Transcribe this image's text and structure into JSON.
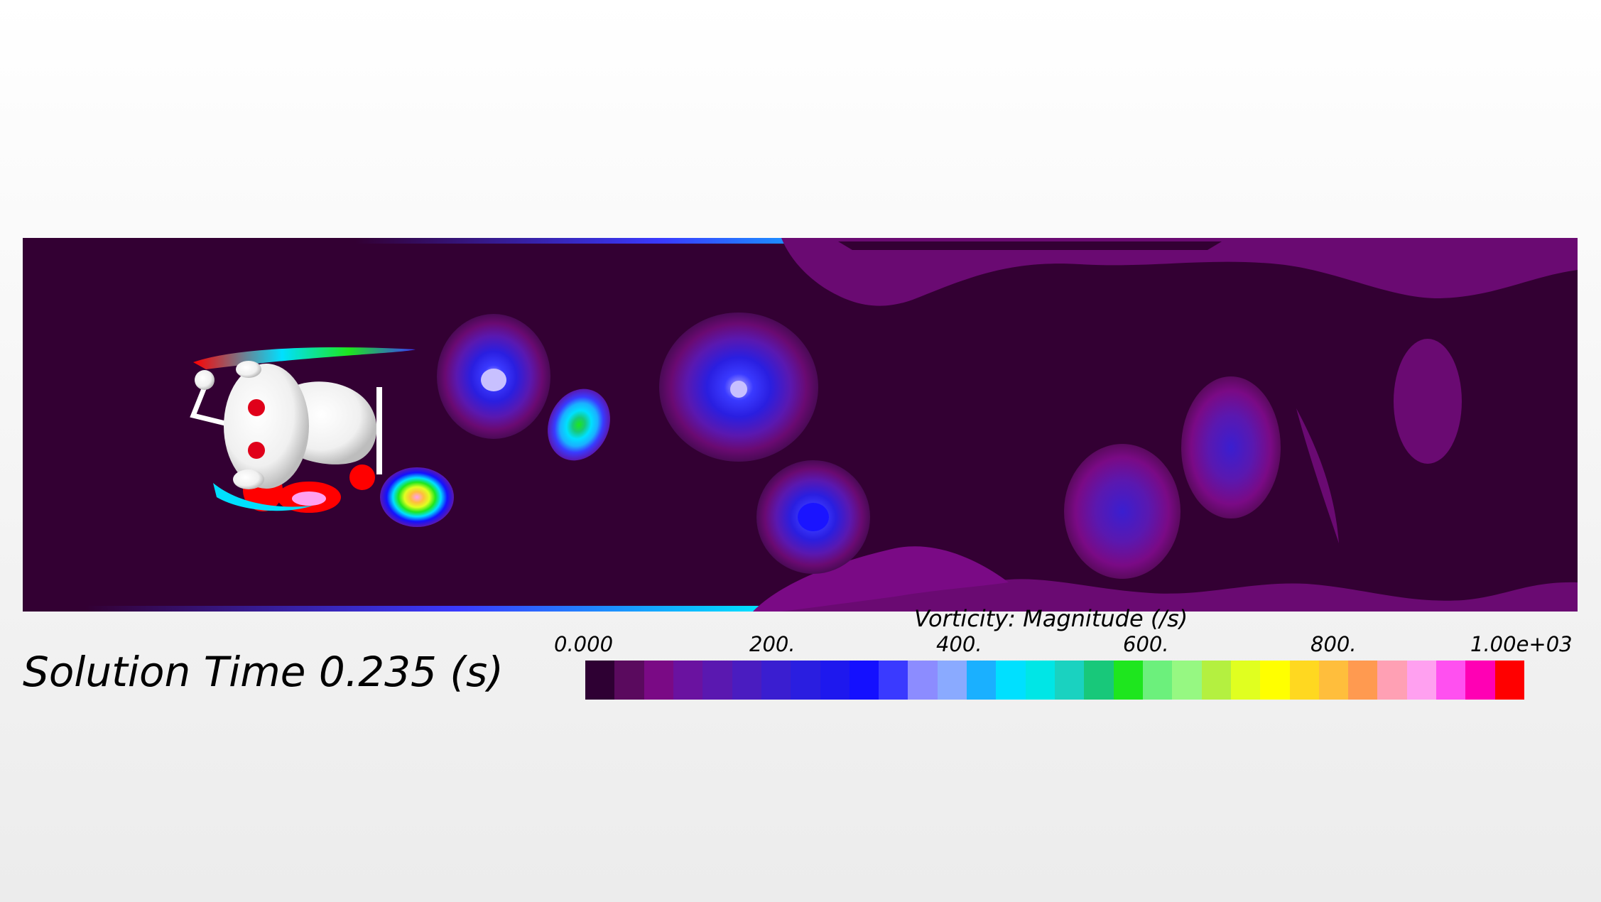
{
  "solution_time_label": "Solution Time 0.235 (s)",
  "legend": {
    "title": "Vorticity: Magnitude (/s)",
    "ticks": [
      "0.000",
      "200.",
      "400.",
      "600.",
      "800.",
      "1.00e+03"
    ],
    "colors": [
      "#2e0033",
      "#5a0a5e",
      "#7a0a85",
      "#6a12a0",
      "#5a18b0",
      "#4a1cc0",
      "#3a1ed0",
      "#2a1ee0",
      "#1e18ee",
      "#1410ff",
      "#3a3aff",
      "#8c8cff",
      "#8aaaff",
      "#1ab0ff",
      "#00e0ff",
      "#00e6e6",
      "#1ad2c0",
      "#18c87a",
      "#1ee61e",
      "#6cf07c",
      "#96f882",
      "#b4f040",
      "#e0ff20",
      "#ffff00",
      "#ffd820",
      "#ffbe3c",
      "#ff9a50",
      "#ffa0b4",
      "#ffa0f0",
      "#ff50f0",
      "#ff00b4",
      "#ff0000"
    ]
  },
  "domain_colors": {
    "background": "#330033",
    "weak_wake": "#6a0a72",
    "mid_wake": "#5a18b0",
    "core_blue": "#1a14ff"
  },
  "body": {
    "shape": "robot-head-shaped bluff body",
    "color": "#ffffff",
    "eyes_color": "#e0001a"
  }
}
